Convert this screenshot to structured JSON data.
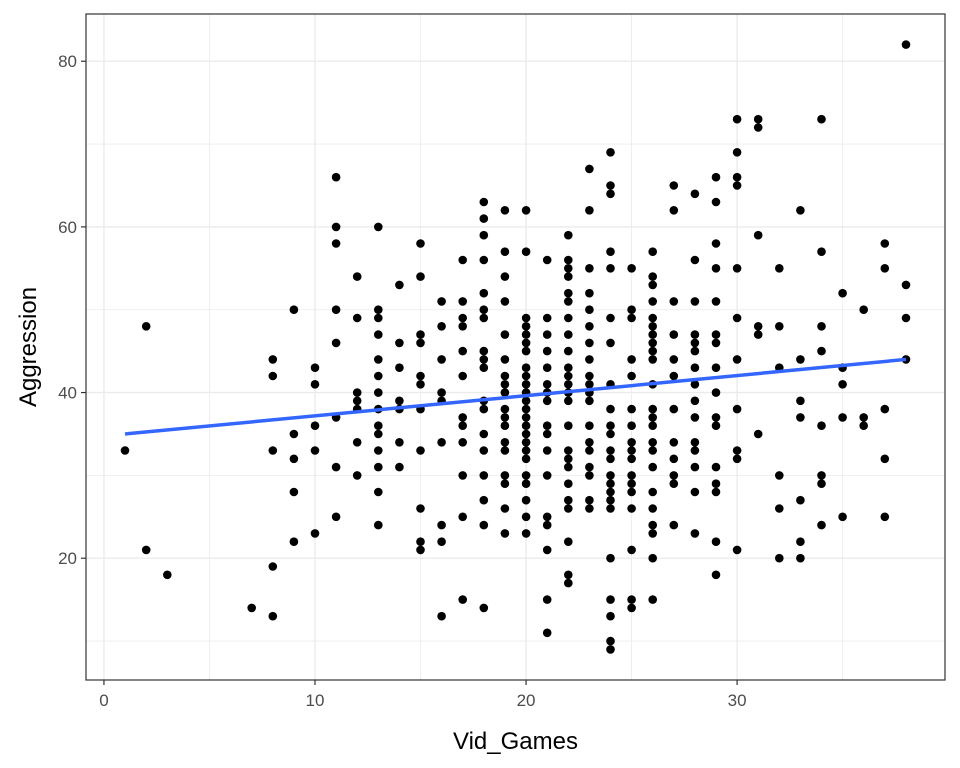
{
  "chart_data": {
    "type": "scatter",
    "title": "",
    "xlabel": "Vid_Games",
    "ylabel": "Aggression",
    "xlim": [
      -0.85,
      39.85
    ],
    "ylim": [
      5.3,
      85.7
    ],
    "x_ticks": [
      0,
      10,
      20,
      30
    ],
    "x_tick_labels": [
      "0",
      "10",
      "20",
      "30"
    ],
    "y_ticks": [
      20,
      40,
      60,
      80
    ],
    "y_tick_labels": [
      "20",
      "40",
      "60",
      "80"
    ],
    "grid": true,
    "theme": "bw",
    "point_color": "#000000",
    "trend_line": {
      "type": "linear",
      "color": "#3366ff",
      "x": [
        1,
        38
      ],
      "y": [
        35.0,
        44.0
      ]
    },
    "points": [
      [
        1,
        33
      ],
      [
        2,
        48
      ],
      [
        2,
        21
      ],
      [
        3,
        18
      ],
      [
        7,
        14
      ],
      [
        8,
        44
      ],
      [
        8,
        42
      ],
      [
        8,
        33
      ],
      [
        8,
        19
      ],
      [
        8,
        13
      ],
      [
        9,
        50
      ],
      [
        9,
        35
      ],
      [
        9,
        32
      ],
      [
        9,
        28
      ],
      [
        9,
        22
      ],
      [
        10,
        43
      ],
      [
        10,
        41
      ],
      [
        10,
        36
      ],
      [
        10,
        33
      ],
      [
        10,
        23
      ],
      [
        11,
        66
      ],
      [
        11,
        60
      ],
      [
        11,
        58
      ],
      [
        11,
        50
      ],
      [
        11,
        46
      ],
      [
        11,
        37
      ],
      [
        11,
        31
      ],
      [
        11,
        25
      ],
      [
        12,
        54
      ],
      [
        12,
        49
      ],
      [
        12,
        40
      ],
      [
        12,
        39
      ],
      [
        12,
        38
      ],
      [
        12,
        34
      ],
      [
        12,
        30
      ],
      [
        13,
        60
      ],
      [
        13,
        50
      ],
      [
        13,
        49
      ],
      [
        13,
        47
      ],
      [
        13,
        44
      ],
      [
        13,
        42
      ],
      [
        13,
        40
      ],
      [
        13,
        38
      ],
      [
        13,
        36
      ],
      [
        13,
        35
      ],
      [
        13,
        33
      ],
      [
        13,
        31
      ],
      [
        13,
        28
      ],
      [
        13,
        24
      ],
      [
        14,
        53
      ],
      [
        14,
        46
      ],
      [
        14,
        43
      ],
      [
        14,
        39
      ],
      [
        14,
        38
      ],
      [
        14,
        34
      ],
      [
        14,
        31
      ],
      [
        15,
        58
      ],
      [
        15,
        54
      ],
      [
        15,
        47
      ],
      [
        15,
        46
      ],
      [
        15,
        42
      ],
      [
        15,
        41
      ],
      [
        15,
        38
      ],
      [
        15,
        33
      ],
      [
        15,
        26
      ],
      [
        15,
        22
      ],
      [
        15,
        21
      ],
      [
        16,
        51
      ],
      [
        16,
        48
      ],
      [
        16,
        44
      ],
      [
        16,
        40
      ],
      [
        16,
        39
      ],
      [
        16,
        34
      ],
      [
        16,
        24
      ],
      [
        16,
        22
      ],
      [
        16,
        13
      ],
      [
        17,
        56
      ],
      [
        17,
        51
      ],
      [
        17,
        49
      ],
      [
        17,
        48
      ],
      [
        17,
        45
      ],
      [
        17,
        42
      ],
      [
        17,
        37
      ],
      [
        17,
        36
      ],
      [
        17,
        34
      ],
      [
        17,
        30
      ],
      [
        17,
        25
      ],
      [
        17,
        15
      ],
      [
        18,
        63
      ],
      [
        18,
        61
      ],
      [
        18,
        59
      ],
      [
        18,
        56
      ],
      [
        18,
        52
      ],
      [
        18,
        50
      ],
      [
        18,
        49
      ],
      [
        18,
        45
      ],
      [
        18,
        44
      ],
      [
        18,
        43
      ],
      [
        18,
        39
      ],
      [
        18,
        38
      ],
      [
        18,
        35
      ],
      [
        18,
        33
      ],
      [
        18,
        30
      ],
      [
        18,
        27
      ],
      [
        18,
        24
      ],
      [
        18,
        14
      ],
      [
        19,
        62
      ],
      [
        19,
        57
      ],
      [
        19,
        54
      ],
      [
        19,
        51
      ],
      [
        19,
        47
      ],
      [
        19,
        44
      ],
      [
        19,
        42
      ],
      [
        19,
        41
      ],
      [
        19,
        40
      ],
      [
        19,
        38
      ],
      [
        19,
        37
      ],
      [
        19,
        36
      ],
      [
        19,
        34
      ],
      [
        19,
        33
      ],
      [
        19,
        30
      ],
      [
        19,
        29
      ],
      [
        19,
        26
      ],
      [
        19,
        23
      ],
      [
        20,
        62
      ],
      [
        20,
        57
      ],
      [
        20,
        49
      ],
      [
        20,
        48
      ],
      [
        20,
        47
      ],
      [
        20,
        46
      ],
      [
        20,
        45
      ],
      [
        20,
        43
      ],
      [
        20,
        42
      ],
      [
        20,
        41
      ],
      [
        20,
        40
      ],
      [
        20,
        39
      ],
      [
        20,
        38
      ],
      [
        20,
        37
      ],
      [
        20,
        36
      ],
      [
        20,
        35
      ],
      [
        20,
        34
      ],
      [
        20,
        33
      ],
      [
        20,
        32
      ],
      [
        20,
        30
      ],
      [
        20,
        29
      ],
      [
        20,
        27
      ],
      [
        20,
        25
      ],
      [
        20,
        23
      ],
      [
        21,
        56
      ],
      [
        21,
        49
      ],
      [
        21,
        47
      ],
      [
        21,
        45
      ],
      [
        21,
        43
      ],
      [
        21,
        41
      ],
      [
        21,
        40
      ],
      [
        21,
        39
      ],
      [
        21,
        36
      ],
      [
        21,
        35
      ],
      [
        21,
        33
      ],
      [
        21,
        30
      ],
      [
        21,
        25
      ],
      [
        21,
        24
      ],
      [
        21,
        21
      ],
      [
        21,
        15
      ],
      [
        21,
        11
      ],
      [
        22,
        59
      ],
      [
        22,
        56
      ],
      [
        22,
        55
      ],
      [
        22,
        54
      ],
      [
        22,
        52
      ],
      [
        22,
        51
      ],
      [
        22,
        49
      ],
      [
        22,
        47
      ],
      [
        22,
        45
      ],
      [
        22,
        43
      ],
      [
        22,
        42
      ],
      [
        22,
        41
      ],
      [
        22,
        40
      ],
      [
        22,
        39
      ],
      [
        22,
        36
      ],
      [
        22,
        33
      ],
      [
        22,
        32
      ],
      [
        22,
        31
      ],
      [
        22,
        29
      ],
      [
        22,
        27
      ],
      [
        22,
        26
      ],
      [
        22,
        22
      ],
      [
        22,
        18
      ],
      [
        22,
        17
      ],
      [
        23,
        67
      ],
      [
        23,
        62
      ],
      [
        23,
        55
      ],
      [
        23,
        52
      ],
      [
        23,
        50
      ],
      [
        23,
        48
      ],
      [
        23,
        46
      ],
      [
        23,
        44
      ],
      [
        23,
        42
      ],
      [
        23,
        41
      ],
      [
        23,
        40
      ],
      [
        23,
        39
      ],
      [
        23,
        36
      ],
      [
        23,
        34
      ],
      [
        23,
        33
      ],
      [
        23,
        31
      ],
      [
        23,
        30
      ],
      [
        23,
        27
      ],
      [
        23,
        26
      ],
      [
        24,
        69
      ],
      [
        24,
        65
      ],
      [
        24,
        64
      ],
      [
        24,
        57
      ],
      [
        24,
        55
      ],
      [
        24,
        49
      ],
      [
        24,
        46
      ],
      [
        24,
        41
      ],
      [
        24,
        38
      ],
      [
        24,
        36
      ],
      [
        24,
        35
      ],
      [
        24,
        33
      ],
      [
        24,
        32
      ],
      [
        24,
        30
      ],
      [
        24,
        29
      ],
      [
        24,
        28
      ],
      [
        24,
        27
      ],
      [
        24,
        26
      ],
      [
        24,
        20
      ],
      [
        24,
        15
      ],
      [
        24,
        13
      ],
      [
        24,
        10
      ],
      [
        24,
        9
      ],
      [
        25,
        55
      ],
      [
        25,
        50
      ],
      [
        25,
        49
      ],
      [
        25,
        44
      ],
      [
        25,
        42
      ],
      [
        25,
        38
      ],
      [
        25,
        36
      ],
      [
        25,
        34
      ],
      [
        25,
        33
      ],
      [
        25,
        32
      ],
      [
        25,
        30
      ],
      [
        25,
        29
      ],
      [
        25,
        28
      ],
      [
        25,
        26
      ],
      [
        25,
        21
      ],
      [
        25,
        15
      ],
      [
        25,
        14
      ],
      [
        26,
        57
      ],
      [
        26,
        54
      ],
      [
        26,
        53
      ],
      [
        26,
        51
      ],
      [
        26,
        49
      ],
      [
        26,
        48
      ],
      [
        26,
        47
      ],
      [
        26,
        46
      ],
      [
        26,
        45
      ],
      [
        26,
        44
      ],
      [
        26,
        41
      ],
      [
        26,
        38
      ],
      [
        26,
        37
      ],
      [
        26,
        36
      ],
      [
        26,
        34
      ],
      [
        26,
        33
      ],
      [
        26,
        31
      ],
      [
        26,
        28
      ],
      [
        26,
        26
      ],
      [
        26,
        24
      ],
      [
        26,
        23
      ],
      [
        26,
        20
      ],
      [
        26,
        15
      ],
      [
        27,
        65
      ],
      [
        27,
        62
      ],
      [
        27,
        51
      ],
      [
        27,
        47
      ],
      [
        27,
        44
      ],
      [
        27,
        42
      ],
      [
        27,
        38
      ],
      [
        27,
        34
      ],
      [
        27,
        32
      ],
      [
        27,
        30
      ],
      [
        27,
        29
      ],
      [
        27,
        24
      ],
      [
        28,
        64
      ],
      [
        28,
        56
      ],
      [
        28,
        51
      ],
      [
        28,
        47
      ],
      [
        28,
        46
      ],
      [
        28,
        45
      ],
      [
        28,
        43
      ],
      [
        28,
        41
      ],
      [
        28,
        39
      ],
      [
        28,
        37
      ],
      [
        28,
        34
      ],
      [
        28,
        33
      ],
      [
        28,
        31
      ],
      [
        28,
        28
      ],
      [
        28,
        23
      ],
      [
        29,
        66
      ],
      [
        29,
        63
      ],
      [
        29,
        58
      ],
      [
        29,
        55
      ],
      [
        29,
        51
      ],
      [
        29,
        47
      ],
      [
        29,
        46
      ],
      [
        29,
        43
      ],
      [
        29,
        40
      ],
      [
        29,
        37
      ],
      [
        29,
        36
      ],
      [
        29,
        31
      ],
      [
        29,
        29
      ],
      [
        29,
        28
      ],
      [
        29,
        22
      ],
      [
        29,
        18
      ],
      [
        30,
        73
      ],
      [
        30,
        69
      ],
      [
        30,
        66
      ],
      [
        30,
        65
      ],
      [
        30,
        55
      ],
      [
        30,
        49
      ],
      [
        30,
        44
      ],
      [
        30,
        38
      ],
      [
        30,
        33
      ],
      [
        30,
        32
      ],
      [
        30,
        21
      ],
      [
        31,
        73
      ],
      [
        31,
        72
      ],
      [
        31,
        59
      ],
      [
        31,
        48
      ],
      [
        31,
        47
      ],
      [
        31,
        35
      ],
      [
        32,
        55
      ],
      [
        32,
        48
      ],
      [
        32,
        43
      ],
      [
        32,
        30
      ],
      [
        32,
        26
      ],
      [
        32,
        20
      ],
      [
        33,
        62
      ],
      [
        33,
        44
      ],
      [
        33,
        39
      ],
      [
        33,
        37
      ],
      [
        33,
        27
      ],
      [
        33,
        22
      ],
      [
        33,
        20
      ],
      [
        34,
        73
      ],
      [
        34,
        57
      ],
      [
        34,
        48
      ],
      [
        34,
        45
      ],
      [
        34,
        36
      ],
      [
        34,
        30
      ],
      [
        34,
        29
      ],
      [
        34,
        24
      ],
      [
        35,
        52
      ],
      [
        35,
        43
      ],
      [
        35,
        41
      ],
      [
        35,
        37
      ],
      [
        35,
        25
      ],
      [
        36,
        50
      ],
      [
        36,
        37
      ],
      [
        36,
        36
      ],
      [
        37,
        58
      ],
      [
        37,
        55
      ],
      [
        37,
        38
      ],
      [
        37,
        32
      ],
      [
        37,
        25
      ],
      [
        38,
        82
      ],
      [
        38,
        53
      ],
      [
        38,
        49
      ],
      [
        38,
        44
      ]
    ]
  }
}
